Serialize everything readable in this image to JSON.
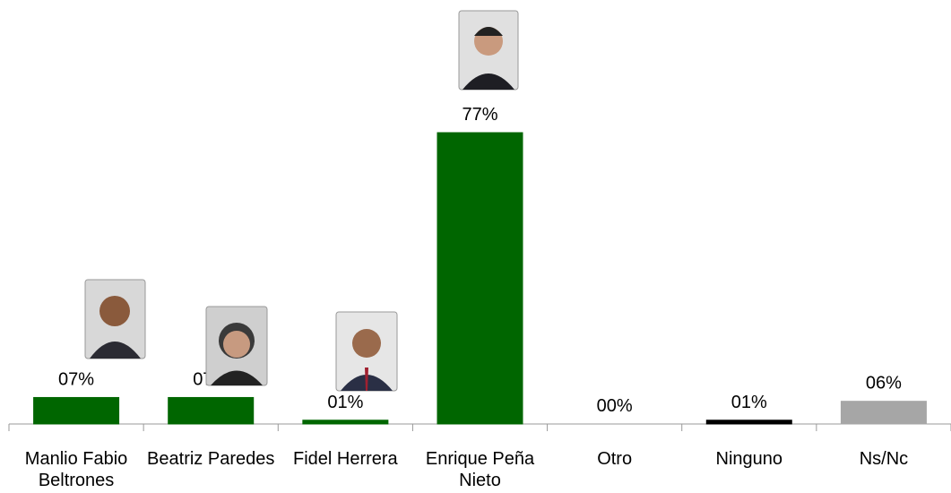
{
  "chart_data": {
    "type": "bar",
    "categories": [
      "Manlio Fabio Beltrones",
      "Beatriz Paredes",
      "Fidel Herrera",
      "Enrique Peña Nieto",
      "Otro",
      "Ninguno",
      "Ns/Nc"
    ],
    "values": [
      7,
      7,
      1,
      77,
      0,
      1,
      6
    ],
    "value_labels": [
      "07%",
      "07%",
      "01%",
      "77%",
      "00%",
      "01%",
      "06%"
    ],
    "colors": [
      "#006600",
      "#006600",
      "#006600",
      "#006600",
      "#006600",
      "#000000",
      "#a6a6a6"
    ]
  }
}
